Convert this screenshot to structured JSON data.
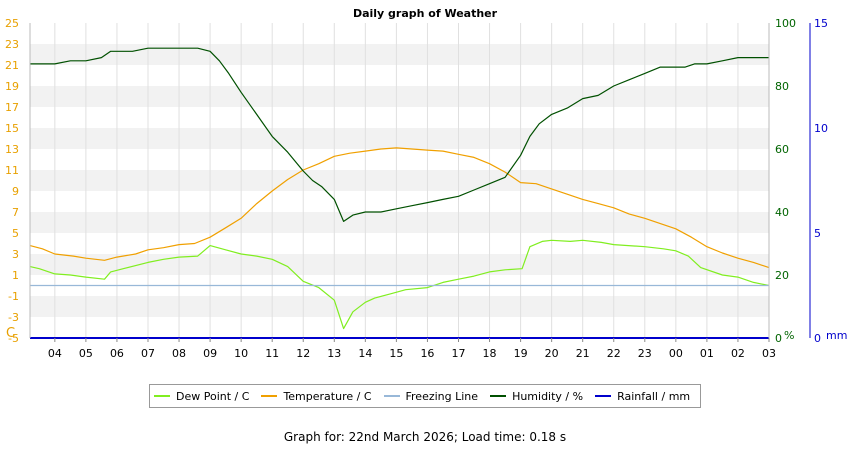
{
  "chart_data": {
    "type": "line",
    "title": "Daily graph of Weather",
    "x_ticks": [
      "04",
      "05",
      "06",
      "07",
      "08",
      "09",
      "10",
      "11",
      "12",
      "13",
      "14",
      "15",
      "16",
      "17",
      "18",
      "19",
      "20",
      "21",
      "22",
      "23",
      "00",
      "01",
      "02",
      "03"
    ],
    "left_axis": {
      "label": "C",
      "ticks": [
        -5,
        -3,
        -1,
        1,
        3,
        5,
        7,
        9,
        11,
        13,
        15,
        17,
        19,
        21,
        23,
        25
      ],
      "range": [
        -5,
        25
      ],
      "color": "#e8a000"
    },
    "right_axis_1": {
      "label": "%",
      "ticks": [
        0,
        20,
        40,
        60,
        80,
        100
      ],
      "range": [
        0,
        100
      ],
      "color": "#006400"
    },
    "right_axis_2": {
      "label": "mm",
      "ticks": [
        0,
        5,
        10,
        15
      ],
      "range": [
        0,
        15
      ],
      "color": "#0000cc"
    },
    "grid": true,
    "legend_position": "bottom",
    "series": [
      {
        "name": "Dew Point / C",
        "axis": "left",
        "color": "#80ee20",
        "points": [
          [
            3.2,
            1.8
          ],
          [
            3.5,
            1.6
          ],
          [
            4.0,
            1.1
          ],
          [
            4.5,
            1.0
          ],
          [
            5.0,
            0.8
          ],
          [
            5.6,
            0.6
          ],
          [
            5.8,
            1.3
          ],
          [
            6.2,
            1.6
          ],
          [
            7.0,
            2.2
          ],
          [
            7.5,
            2.5
          ],
          [
            8.0,
            2.7
          ],
          [
            8.6,
            2.8
          ],
          [
            9.0,
            3.8
          ],
          [
            9.5,
            3.4
          ],
          [
            10.0,
            3.0
          ],
          [
            10.5,
            2.8
          ],
          [
            11.0,
            2.5
          ],
          [
            11.5,
            1.8
          ],
          [
            12.0,
            0.4
          ],
          [
            12.5,
            -0.2
          ],
          [
            13.0,
            -1.4
          ],
          [
            13.3,
            -4.1
          ],
          [
            13.6,
            -2.5
          ],
          [
            14.0,
            -1.6
          ],
          [
            14.3,
            -1.2
          ],
          [
            14.8,
            -0.8
          ],
          [
            15.3,
            -0.4
          ],
          [
            16.0,
            -0.2
          ],
          [
            16.5,
            0.3
          ],
          [
            17.0,
            0.6
          ],
          [
            17.5,
            0.9
          ],
          [
            18.0,
            1.3
          ],
          [
            18.5,
            1.5
          ],
          [
            19.05,
            1.6
          ],
          [
            19.3,
            3.7
          ],
          [
            19.7,
            4.2
          ],
          [
            20.0,
            4.3
          ],
          [
            20.6,
            4.2
          ],
          [
            21.0,
            4.3
          ],
          [
            21.6,
            4.1
          ],
          [
            22.0,
            3.9
          ],
          [
            23.0,
            3.7
          ],
          [
            23.6,
            3.5
          ],
          [
            24.0,
            3.3
          ],
          [
            24.4,
            2.8
          ],
          [
            24.8,
            1.7
          ],
          [
            25.5,
            1.0
          ],
          [
            26.0,
            0.8
          ],
          [
            26.5,
            0.3
          ],
          [
            27.0,
            0.0
          ]
        ]
      },
      {
        "name": "Temperature / C",
        "axis": "left",
        "color": "#f0a000",
        "points": [
          [
            3.2,
            3.8
          ],
          [
            3.6,
            3.5
          ],
          [
            4.0,
            3.0
          ],
          [
            4.6,
            2.8
          ],
          [
            5.0,
            2.6
          ],
          [
            5.6,
            2.4
          ],
          [
            6.0,
            2.7
          ],
          [
            6.6,
            3.0
          ],
          [
            7.0,
            3.4
          ],
          [
            7.5,
            3.6
          ],
          [
            8.0,
            3.9
          ],
          [
            8.5,
            4.0
          ],
          [
            9.0,
            4.6
          ],
          [
            9.5,
            5.5
          ],
          [
            10.0,
            6.4
          ],
          [
            10.5,
            7.8
          ],
          [
            11.0,
            9.0
          ],
          [
            11.5,
            10.1
          ],
          [
            12.0,
            11.0
          ],
          [
            12.5,
            11.6
          ],
          [
            13.0,
            12.3
          ],
          [
            13.5,
            12.6
          ],
          [
            14.0,
            12.8
          ],
          [
            14.5,
            13.0
          ],
          [
            15.0,
            13.1
          ],
          [
            15.5,
            13.0
          ],
          [
            16.0,
            12.9
          ],
          [
            16.5,
            12.8
          ],
          [
            17.0,
            12.5
          ],
          [
            17.5,
            12.2
          ],
          [
            18.0,
            11.6
          ],
          [
            18.5,
            10.8
          ],
          [
            18.8,
            10.2
          ],
          [
            19.0,
            9.8
          ],
          [
            19.5,
            9.7
          ],
          [
            20.0,
            9.2
          ],
          [
            20.5,
            8.7
          ],
          [
            21.0,
            8.2
          ],
          [
            21.5,
            7.8
          ],
          [
            22.0,
            7.4
          ],
          [
            22.5,
            6.8
          ],
          [
            23.0,
            6.4
          ],
          [
            23.5,
            5.9
          ],
          [
            24.0,
            5.4
          ],
          [
            24.5,
            4.6
          ],
          [
            25.0,
            3.7
          ],
          [
            25.5,
            3.1
          ],
          [
            26.0,
            2.6
          ],
          [
            26.5,
            2.2
          ],
          [
            27.0,
            1.7
          ]
        ]
      },
      {
        "name": "Freezing Line",
        "axis": "left",
        "color": "#98b8d8",
        "points": [
          [
            3.2,
            0.0
          ],
          [
            27.0,
            0.0
          ]
        ]
      },
      {
        "name": "Humidity / %",
        "axis": "right_1",
        "color": "#005000",
        "points": [
          [
            3.2,
            87
          ],
          [
            3.5,
            87
          ],
          [
            4.0,
            87
          ],
          [
            4.5,
            88
          ],
          [
            5.0,
            88
          ],
          [
            5.5,
            89
          ],
          [
            5.8,
            91
          ],
          [
            6.5,
            91
          ],
          [
            7.0,
            92
          ],
          [
            8.0,
            92
          ],
          [
            8.6,
            92
          ],
          [
            9.0,
            91
          ],
          [
            9.3,
            88
          ],
          [
            9.6,
            84
          ],
          [
            10.0,
            78
          ],
          [
            10.5,
            71
          ],
          [
            11.0,
            64
          ],
          [
            11.5,
            59
          ],
          [
            12.0,
            53
          ],
          [
            12.3,
            50
          ],
          [
            12.6,
            48
          ],
          [
            13.0,
            44
          ],
          [
            13.3,
            37
          ],
          [
            13.6,
            39
          ],
          [
            14.0,
            40
          ],
          [
            14.5,
            40
          ],
          [
            15.0,
            41
          ],
          [
            15.5,
            42
          ],
          [
            16.0,
            43
          ],
          [
            16.5,
            44
          ],
          [
            17.0,
            45
          ],
          [
            17.5,
            47
          ],
          [
            18.0,
            49
          ],
          [
            18.5,
            51
          ],
          [
            19.0,
            58
          ],
          [
            19.3,
            64
          ],
          [
            19.6,
            68
          ],
          [
            20.0,
            71
          ],
          [
            20.5,
            73
          ],
          [
            21.0,
            76
          ],
          [
            21.5,
            77
          ],
          [
            22.0,
            80
          ],
          [
            22.5,
            82
          ],
          [
            23.0,
            84
          ],
          [
            23.5,
            86
          ],
          [
            24.0,
            86
          ],
          [
            24.3,
            86
          ],
          [
            24.6,
            87
          ],
          [
            25.0,
            87
          ],
          [
            25.5,
            88
          ],
          [
            26.0,
            89
          ],
          [
            27.0,
            89
          ]
        ]
      },
      {
        "name": "Rainfall / mm",
        "axis": "right_2",
        "color": "#0000cc",
        "points": [
          [
            3.2,
            0.0
          ],
          [
            27.0,
            0.0
          ]
        ]
      }
    ]
  },
  "footer": "Graph for: 22nd March 2026; Load time: 0.18 s"
}
